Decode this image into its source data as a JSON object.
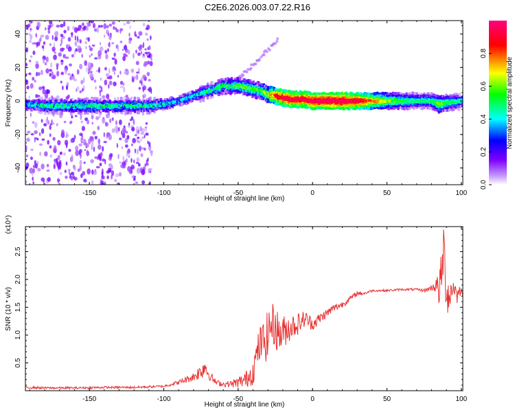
{
  "title": "C2E6.2026.003.07.22.R16",
  "chart_data": [
    {
      "type": "heatmap",
      "title": "C2E6.2026.003.07.22.R16",
      "xlabel": "Height of straight line (km)",
      "ylabel": "Frequency (Hz)",
      "xlim": [
        -193,
        101
      ],
      "ylim": [
        -50,
        48
      ],
      "xticks": [
        -150,
        -100,
        -50,
        0,
        50,
        100
      ],
      "xtick_labels": [
        "-150",
        "-100",
        "-50",
        "0",
        "50",
        "100"
      ],
      "yticks": [
        -40,
        -20,
        0,
        20,
        40
      ],
      "ytick_labels": [
        "-40",
        "-20",
        "0",
        "20",
        "40"
      ],
      "colorbar": {
        "label": "Normalized spectral amplitude",
        "range": [
          0,
          1
        ],
        "ticks": [
          0.0,
          0.2,
          0.4,
          0.6,
          0.8
        ],
        "tick_labels": [
          "0.0",
          "0.2",
          "0.4",
          "0.6",
          "0.8"
        ]
      },
      "ridge": {
        "x": [
          -193,
          -180,
          -160,
          -140,
          -120,
          -110,
          -100,
          -90,
          -80,
          -70,
          -60,
          -50,
          -45,
          -40,
          -35,
          -30,
          -25,
          -20,
          -15,
          -10,
          -5,
          0,
          10,
          20,
          30,
          40,
          50,
          60,
          70,
          80,
          85,
          90,
          100
        ],
        "frequency": [
          -2,
          -3,
          -3,
          -3,
          -3,
          -3,
          -2,
          0,
          3,
          6,
          9,
          9,
          8,
          7,
          6,
          4,
          3,
          2,
          1,
          1,
          1,
          0,
          0,
          0,
          0,
          0,
          0,
          0,
          0,
          0,
          -2,
          -1,
          0
        ],
        "amplitude": [
          0.35,
          0.45,
          0.45,
          0.45,
          0.45,
          0.45,
          0.4,
          0.35,
          0.4,
          0.45,
          0.5,
          0.55,
          0.6,
          0.55,
          0.55,
          0.7,
          0.85,
          0.9,
          0.9,
          0.9,
          0.9,
          0.92,
          0.95,
          0.95,
          0.9,
          0.75,
          0.6,
          0.5,
          0.45,
          0.45,
          0.6,
          0.5,
          0.4
        ]
      }
    },
    {
      "type": "line",
      "xlabel": "Height of straight line (km)",
      "ylabel": "SNR (10 * v/v)",
      "y_multiplier": "(x10⁴)",
      "xlim": [
        -193,
        101
      ],
      "ylim": [
        0,
        2.95
      ],
      "xticks": [
        -150,
        -100,
        -50,
        0,
        50,
        100
      ],
      "xtick_labels": [
        "-150",
        "-100",
        "-50",
        "0",
        "50",
        "100"
      ],
      "yticks": [
        0.5,
        1.0,
        1.5,
        2.0,
        2.5
      ],
      "ytick_labels": [
        "0.5",
        "1.0",
        "1.5",
        "2.0",
        "2.5"
      ],
      "series": [
        {
          "name": "SNR",
          "color": "#e83030",
          "x": [
            -193,
            -180,
            -160,
            -140,
            -120,
            -110,
            -100,
            -90,
            -85,
            -80,
            -75,
            -72,
            -70,
            -65,
            -60,
            -55,
            -50,
            -45,
            -40,
            -37,
            -35,
            -32,
            -30,
            -28,
            -25,
            -22,
            -20,
            -15,
            -10,
            -5,
            0,
            5,
            10,
            15,
            20,
            25,
            30,
            35,
            40,
            50,
            60,
            70,
            75,
            80,
            83,
            85,
            87,
            88,
            90,
            92,
            95,
            97,
            99,
            101
          ],
          "y": [
            0.06,
            0.05,
            0.05,
            0.06,
            0.06,
            0.07,
            0.08,
            0.15,
            0.2,
            0.25,
            0.35,
            0.45,
            0.3,
            0.15,
            0.12,
            0.12,
            0.15,
            0.2,
            0.35,
            0.7,
            0.85,
            0.9,
            1.0,
            1.2,
            1.15,
            1.0,
            1.05,
            1.15,
            1.2,
            1.3,
            1.2,
            1.3,
            1.4,
            1.5,
            1.55,
            1.65,
            1.75,
            1.75,
            1.8,
            1.8,
            1.82,
            1.82,
            1.8,
            1.85,
            1.9,
            1.8,
            2.1,
            2.6,
            1.8,
            1.7,
            1.9,
            1.7,
            1.8,
            1.78
          ],
          "noise_amplitude": [
            0.02,
            0.02,
            0.02,
            0.02,
            0.02,
            0.02,
            0.02,
            0.04,
            0.06,
            0.08,
            0.15,
            0.18,
            0.1,
            0.05,
            0.05,
            0.06,
            0.1,
            0.15,
            0.25,
            0.3,
            0.35,
            0.4,
            0.45,
            0.4,
            0.4,
            0.35,
            0.3,
            0.25,
            0.2,
            0.15,
            0.12,
            0.1,
            0.08,
            0.07,
            0.06,
            0.05,
            0.04,
            0.03,
            0.02,
            0.02,
            0.02,
            0.02,
            0.03,
            0.05,
            0.15,
            0.3,
            0.5,
            0.55,
            0.45,
            0.3,
            0.2,
            0.15,
            0.1,
            0.08
          ]
        }
      ]
    }
  ]
}
